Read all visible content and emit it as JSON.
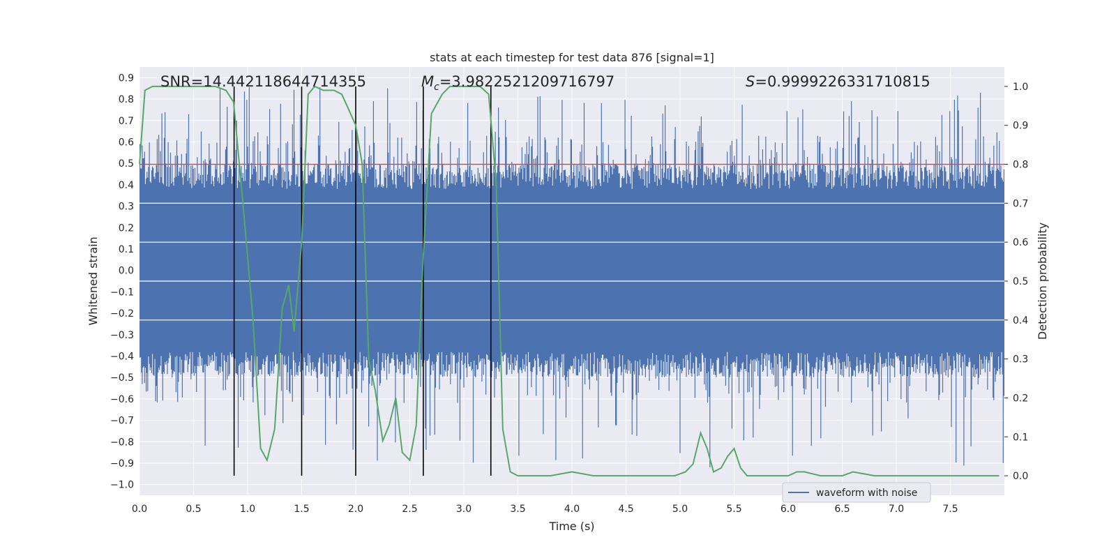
{
  "chart_data": {
    "type": "line",
    "title": "stats at each timestep for test data 876 [signal=1]",
    "xlabel": "Time (s)",
    "ylabel": "Whitened strain",
    "y2label": "Detection probability",
    "xlim": [
      0.0,
      8.0
    ],
    "ylim": [
      -1.05,
      0.95
    ],
    "y2lim": [
      -0.05,
      1.05
    ],
    "xticks": [
      "0.0",
      "0.5",
      "1.0",
      "1.5",
      "2.0",
      "2.5",
      "3.0",
      "3.5",
      "4.0",
      "4.5",
      "5.0",
      "5.5",
      "6.0",
      "6.5",
      "7.0",
      "7.5"
    ],
    "yticks": [
      "0.9",
      "0.8",
      "0.7",
      "0.6",
      "0.5",
      "0.4",
      "0.3",
      "0.2",
      "0.1",
      "0.0",
      "−0.1",
      "−0.2",
      "−0.3",
      "−0.4",
      "−0.5",
      "−0.6",
      "−0.7",
      "−0.8",
      "−0.9",
      "−1.0"
    ],
    "y2ticks": [
      "0.0",
      "0.1",
      "0.2",
      "0.3",
      "0.4",
      "0.5",
      "0.6",
      "0.7",
      "0.8",
      "0.9",
      "1.0"
    ],
    "grid": true,
    "legend_position": "bottom-right",
    "annotations": {
      "snr": "SNR=14.442118644714355",
      "mc_symbol": "M",
      "mc_sub": "c",
      "mc_value": "=3.9822521209716797",
      "s_symbol": "S",
      "s_value": "=0.9999226331710815"
    },
    "threshold": {
      "y2": 0.8,
      "color": "#c44e52"
    },
    "vertical_lines": [
      0.875,
      1.5,
      2.0,
      2.625,
      3.25
    ],
    "series": [
      {
        "name": "waveform with noise",
        "axis": "left",
        "style": "noise",
        "color": "#4c72b0",
        "envelope": {
          "upper": 0.38,
          "lower": -0.38,
          "peak_max": 0.86,
          "peak_min": -0.92
        }
      },
      {
        "axis": "right",
        "style": "line",
        "color": "#55a868",
        "x": [
          0.0,
          0.05,
          0.12,
          0.25,
          0.5,
          0.7,
          0.8,
          0.87,
          0.95,
          1.05,
          1.12,
          1.18,
          1.25,
          1.32,
          1.38,
          1.43,
          1.5,
          1.56,
          1.62,
          1.7,
          1.8,
          1.87,
          1.92,
          2.0,
          2.06,
          2.12,
          2.18,
          2.25,
          2.31,
          2.37,
          2.43,
          2.5,
          2.56,
          2.62,
          2.7,
          2.8,
          2.87,
          2.95,
          3.05,
          3.15,
          3.23,
          3.3,
          3.36,
          3.43,
          3.5,
          3.6,
          3.8,
          4.0,
          4.2,
          4.4,
          4.6,
          4.8,
          4.95,
          5.05,
          5.12,
          5.19,
          5.25,
          5.31,
          5.38,
          5.44,
          5.5,
          5.56,
          5.62,
          5.8,
          6.0,
          6.08,
          6.15,
          6.3,
          6.5,
          6.6,
          6.8,
          7.0,
          7.2,
          7.4,
          7.6,
          7.8,
          7.95
        ],
        "y": [
          0.8,
          0.99,
          1.0,
          1.0,
          1.0,
          1.0,
          0.99,
          0.96,
          0.72,
          0.4,
          0.07,
          0.04,
          0.12,
          0.43,
          0.49,
          0.37,
          0.6,
          0.98,
          1.0,
          0.99,
          0.99,
          0.98,
          0.95,
          0.9,
          0.8,
          0.3,
          0.22,
          0.09,
          0.13,
          0.2,
          0.06,
          0.04,
          0.13,
          0.54,
          0.93,
          0.98,
          1.0,
          1.0,
          1.0,
          1.0,
          0.98,
          0.75,
          0.12,
          0.01,
          0.0,
          0.0,
          0.0,
          0.01,
          0.0,
          0.0,
          0.0,
          0.0,
          0.0,
          0.01,
          0.03,
          0.11,
          0.07,
          0.01,
          0.02,
          0.05,
          0.07,
          0.02,
          0.0,
          0.0,
          0.0,
          0.01,
          0.01,
          0.0,
          0.0,
          0.01,
          0.0,
          0.0,
          0.0,
          0.0,
          0.0,
          0.0,
          0.0
        ]
      }
    ]
  }
}
